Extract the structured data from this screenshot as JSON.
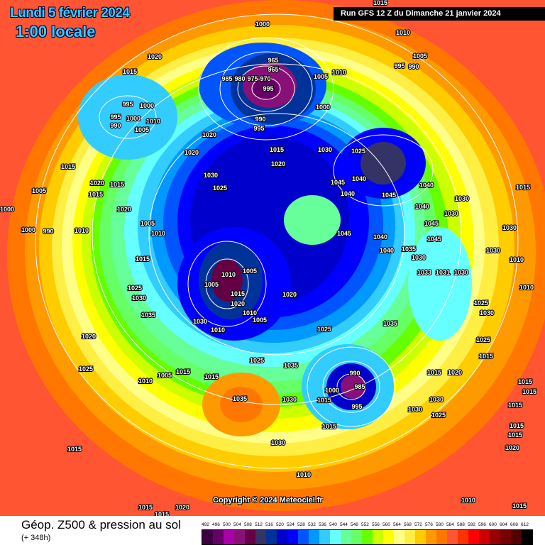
{
  "header": {
    "date": "Lundi 5 février 2024",
    "time": "1:00 locale",
    "run": "Run GFS 12 Z du Dimanche 21 janvier 2024"
  },
  "copyright": "Copyright © 2024 Meteociel.fr",
  "footer": {
    "title": "Géop. Z500 & pression au sol",
    "forecast_hour": "(+ 348h)"
  },
  "legend": {
    "labels": [
      "492",
      "496",
      "500",
      "504",
      "508",
      "512",
      "516",
      "520",
      "524",
      "528",
      "532",
      "536",
      "540",
      "544",
      "548",
      "552",
      "556",
      "560",
      "564",
      "568",
      "572",
      "576",
      "580",
      "584",
      "588",
      "592",
      "596",
      "600",
      "604",
      "608",
      "612"
    ],
    "colors": [
      "#3a0040",
      "#660066",
      "#aa00aa",
      "#881177",
      "#660044",
      "#333366",
      "#003399",
      "#0000cc",
      "#0000ff",
      "#0055ff",
      "#0099ff",
      "#33ccff",
      "#66ffff",
      "#66ff99",
      "#66ff66",
      "#66ff00",
      "#ccff00",
      "#ffff00",
      "#ffff88",
      "#ffee44",
      "#ffcc00",
      "#ff9900",
      "#ff7700",
      "#ff5533",
      "#ff3300",
      "#ff0000",
      "#cc0000",
      "#990000",
      "#770000",
      "#550000",
      "#000000"
    ]
  },
  "pressure_labels": [
    "1000",
    "1010",
    "1015",
    "1020",
    "1015",
    "1005",
    "995",
    "990",
    "965",
    "965",
    "985",
    "980",
    "975",
    "970",
    "995",
    "1005",
    "1010",
    "1000",
    "990",
    "995",
    "995",
    "1000",
    "995",
    "990",
    "1000",
    "1010",
    "1005",
    "1020",
    "1015",
    "1030",
    "1025",
    "1020",
    "1020",
    "1015",
    "1030",
    "1045",
    "1040",
    "1045",
    "1040",
    "1040",
    "1030",
    "1015",
    "1005",
    "1020",
    "1015",
    "1015",
    "1025",
    "1000",
    "1020",
    "1040",
    "1030",
    "1005",
    "1045",
    "1030",
    "1000",
    "990",
    "1010",
    "1010",
    "1045",
    "1040",
    "1045",
    "1035",
    "1030",
    "1040",
    "1030",
    "1010",
    "1015",
    "1010",
    "1005",
    "1033",
    "1031",
    "1030",
    "1005",
    "1025",
    "1015",
    "1030",
    "1010",
    "1020",
    "1020",
    "1025",
    "1030",
    "1035",
    "1010",
    "1005",
    "1030",
    "1010",
    "1035",
    "1025",
    "1020",
    "1025",
    "1015",
    "1025",
    "1035",
    "1025",
    "1010",
    "1005",
    "1015",
    "1015",
    "990",
    "985",
    "1000",
    "1015",
    "1015",
    "1020",
    "1015",
    "1015",
    "1035",
    "1030",
    "995",
    "1030",
    "1030",
    "1025",
    "1015",
    "1015",
    "1015",
    "1030",
    "1015",
    "1015",
    "1020",
    "1010",
    "1010",
    "1015",
    "1015",
    "1015",
    "1020"
  ]
}
